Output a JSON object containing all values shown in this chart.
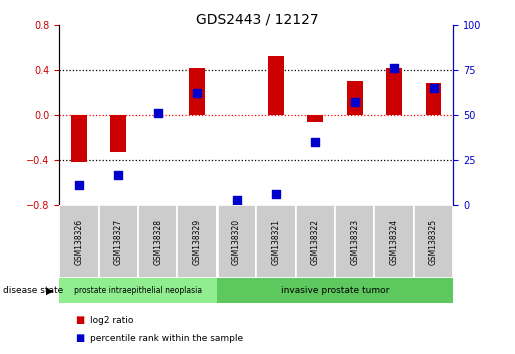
{
  "title": "GDS2443 / 12127",
  "samples": [
    "GSM138326",
    "GSM138327",
    "GSM138328",
    "GSM138329",
    "GSM138320",
    "GSM138321",
    "GSM138322",
    "GSM138323",
    "GSM138324",
    "GSM138325"
  ],
  "log2_ratio": [
    -0.42,
    -0.33,
    0.0,
    0.42,
    0.0,
    0.52,
    -0.06,
    0.3,
    0.42,
    0.28
  ],
  "percentile_rank": [
    11,
    17,
    51,
    62,
    3,
    6,
    35,
    57,
    76,
    65
  ],
  "ylim_left": [
    -0.8,
    0.8
  ],
  "ylim_right": [
    0,
    100
  ],
  "yticks_left": [
    -0.8,
    -0.4,
    0.0,
    0.4,
    0.8
  ],
  "yticks_right": [
    0,
    25,
    50,
    75,
    100
  ],
  "hlines": [
    -0.4,
    0.0,
    0.4
  ],
  "bar_color": "#CC0000",
  "dot_color": "#0000CC",
  "group1_label": "prostate intraepithelial neoplasia",
  "group2_label": "invasive prostate tumor",
  "group1_color": "#90EE90",
  "group2_color": "#5DC85D",
  "group1_count": 4,
  "group2_count": 6,
  "disease_state_label": "disease state",
  "legend_log2": "log2 ratio",
  "legend_pct": "percentile rank within the sample",
  "background_color": "#ffffff",
  "bar_width": 0.4,
  "dot_size": 28,
  "left_tick_color": "#CC0000",
  "right_tick_color": "#0000CC"
}
